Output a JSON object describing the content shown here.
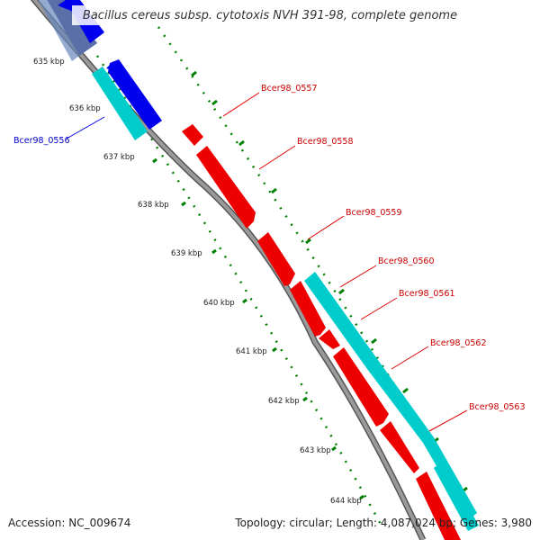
{
  "title": "Bacillus cereus subsp. cytotoxis NVH 391-98, complete genome",
  "footer": {
    "accession": "Accession: NC_009674",
    "summary": "Topology: circular; Length: 4,087,024 bp; Genes: 3,980"
  },
  "colors": {
    "backbone": "#808080",
    "tick": "#008000",
    "cds_forward": "#ee0000",
    "cds_reverse": "#0000ee",
    "rna": "#00c8c8",
    "label_forward": "#cc0000",
    "label_reverse": "#0000cc"
  },
  "scale_labels": [
    "635 kbp",
    "636 kbp",
    "637 kbp",
    "638 kbp",
    "639 kbp",
    "640 kbp",
    "641 kbp",
    "642 kbp",
    "643 kbp",
    "644 kbp"
  ],
  "gene_labels": [
    {
      "id": "Bcer98_0556",
      "strand": "reverse"
    },
    {
      "id": "Bcer98_0557",
      "strand": "forward"
    },
    {
      "id": "Bcer98_0558",
      "strand": "forward"
    },
    {
      "id": "Bcer98_0559",
      "strand": "forward"
    },
    {
      "id": "Bcer98_0560",
      "strand": "forward"
    },
    {
      "id": "Bcer98_0561",
      "strand": "forward"
    },
    {
      "id": "Bcer98_0562",
      "strand": "forward"
    },
    {
      "id": "Bcer98_0563",
      "strand": "forward"
    }
  ]
}
